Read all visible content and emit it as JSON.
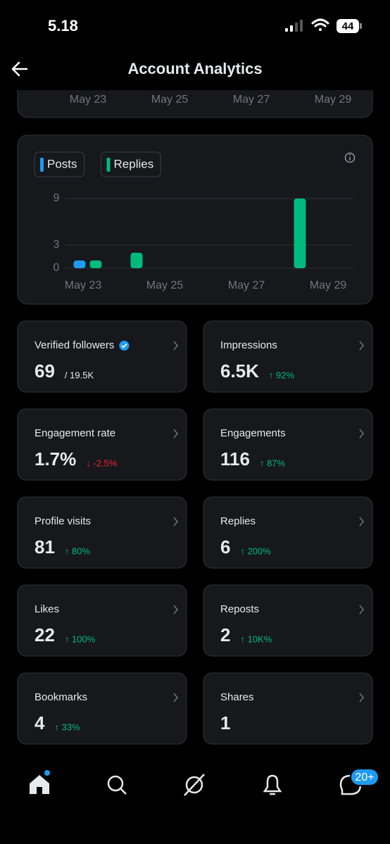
{
  "status_bar": {
    "time": "5.18",
    "battery": "44"
  },
  "header": {
    "title": "Account Analytics"
  },
  "top_chart": {
    "x_labels": [
      "May 23",
      "May 25",
      "May 27",
      "May 29"
    ]
  },
  "chart_data": {
    "type": "bar",
    "categories": [
      "May 23",
      null,
      "May 25",
      null,
      "May 27",
      null,
      "May 29"
    ],
    "series": [
      {
        "name": "Posts",
        "color": "#1d9bf0",
        "values": [
          1,
          0,
          0,
          0,
          0,
          0,
          0
        ]
      },
      {
        "name": "Replies",
        "color": "#00ba7c",
        "values": [
          1,
          2,
          0,
          0,
          0,
          9,
          0
        ]
      }
    ],
    "ylim": [
      0,
      9
    ],
    "yticks": [
      0,
      3,
      9
    ],
    "grid": true
  },
  "cards": [
    {
      "label": "Verified followers",
      "value": "69",
      "sub": "/ 19.5K",
      "verified": true
    },
    {
      "label": "Impressions",
      "value": "6.5K",
      "change": "↑ 92%",
      "direction": "up"
    },
    {
      "label": "Engagement rate",
      "value": "1.7%",
      "change": "↓ -2.5%",
      "direction": "down"
    },
    {
      "label": "Engagements",
      "value": "116",
      "change": "↑ 87%",
      "direction": "up"
    },
    {
      "label": "Profile visits",
      "value": "81",
      "change": "↑ 80%",
      "direction": "up"
    },
    {
      "label": "Replies",
      "value": "6",
      "change": "↑ 200%",
      "direction": "up"
    },
    {
      "label": "Likes",
      "value": "22",
      "change": "↑ 100%",
      "direction": "up"
    },
    {
      "label": "Reposts",
      "value": "2",
      "change": "↑ 10K%",
      "direction": "up"
    },
    {
      "label": "Bookmarks",
      "value": "4",
      "change": "↑ 33%",
      "direction": "up"
    },
    {
      "label": "Shares",
      "value": "1"
    }
  ],
  "nav": {
    "messages_badge": "20+"
  }
}
